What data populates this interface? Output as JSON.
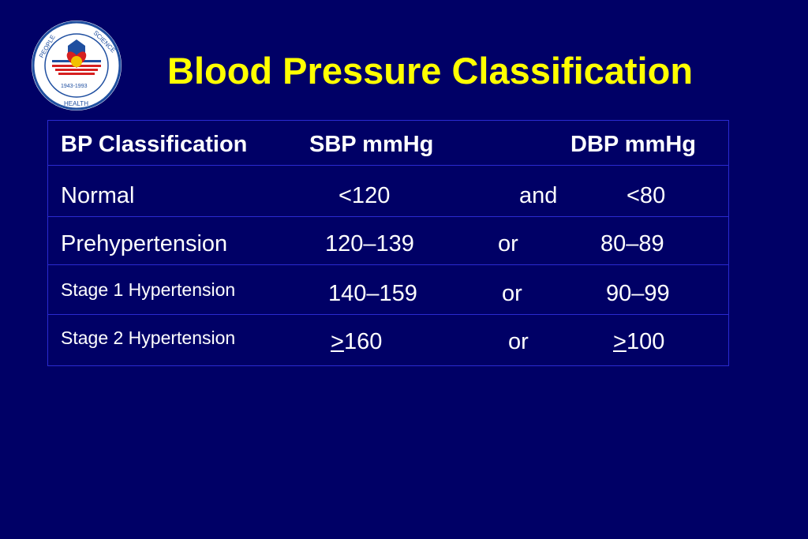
{
  "title": "Blood Pressure Classification",
  "logo": {
    "text_top_left": "PEOPLE",
    "text_top_right": "SCIENCE",
    "text_bottom": "HEALTH",
    "years": "1943-1993",
    "ring_color": "#1f4fa0",
    "accent_color": "#d62020"
  },
  "table": {
    "headers": {
      "classification": "BP Classification",
      "sbp": "SBP mmHg",
      "dbp": "DBP mmHg"
    },
    "rows": [
      {
        "classification": "Normal",
        "sbp": "<120",
        "connector": "and",
        "dbp": "<80"
      },
      {
        "classification": "Prehypertension",
        "sbp": "120–139",
        "connector": "or",
        "dbp": "80–89"
      },
      {
        "classification": "Stage 1 Hypertension",
        "sbp": "140–159",
        "connector": "or",
        "dbp": "90–99"
      },
      {
        "classification": "Stage 2 Hypertension",
        "sbp_symbol": ">",
        "sbp": "160",
        "connector": "or",
        "dbp_symbol": ">",
        "dbp": "100"
      }
    ]
  }
}
